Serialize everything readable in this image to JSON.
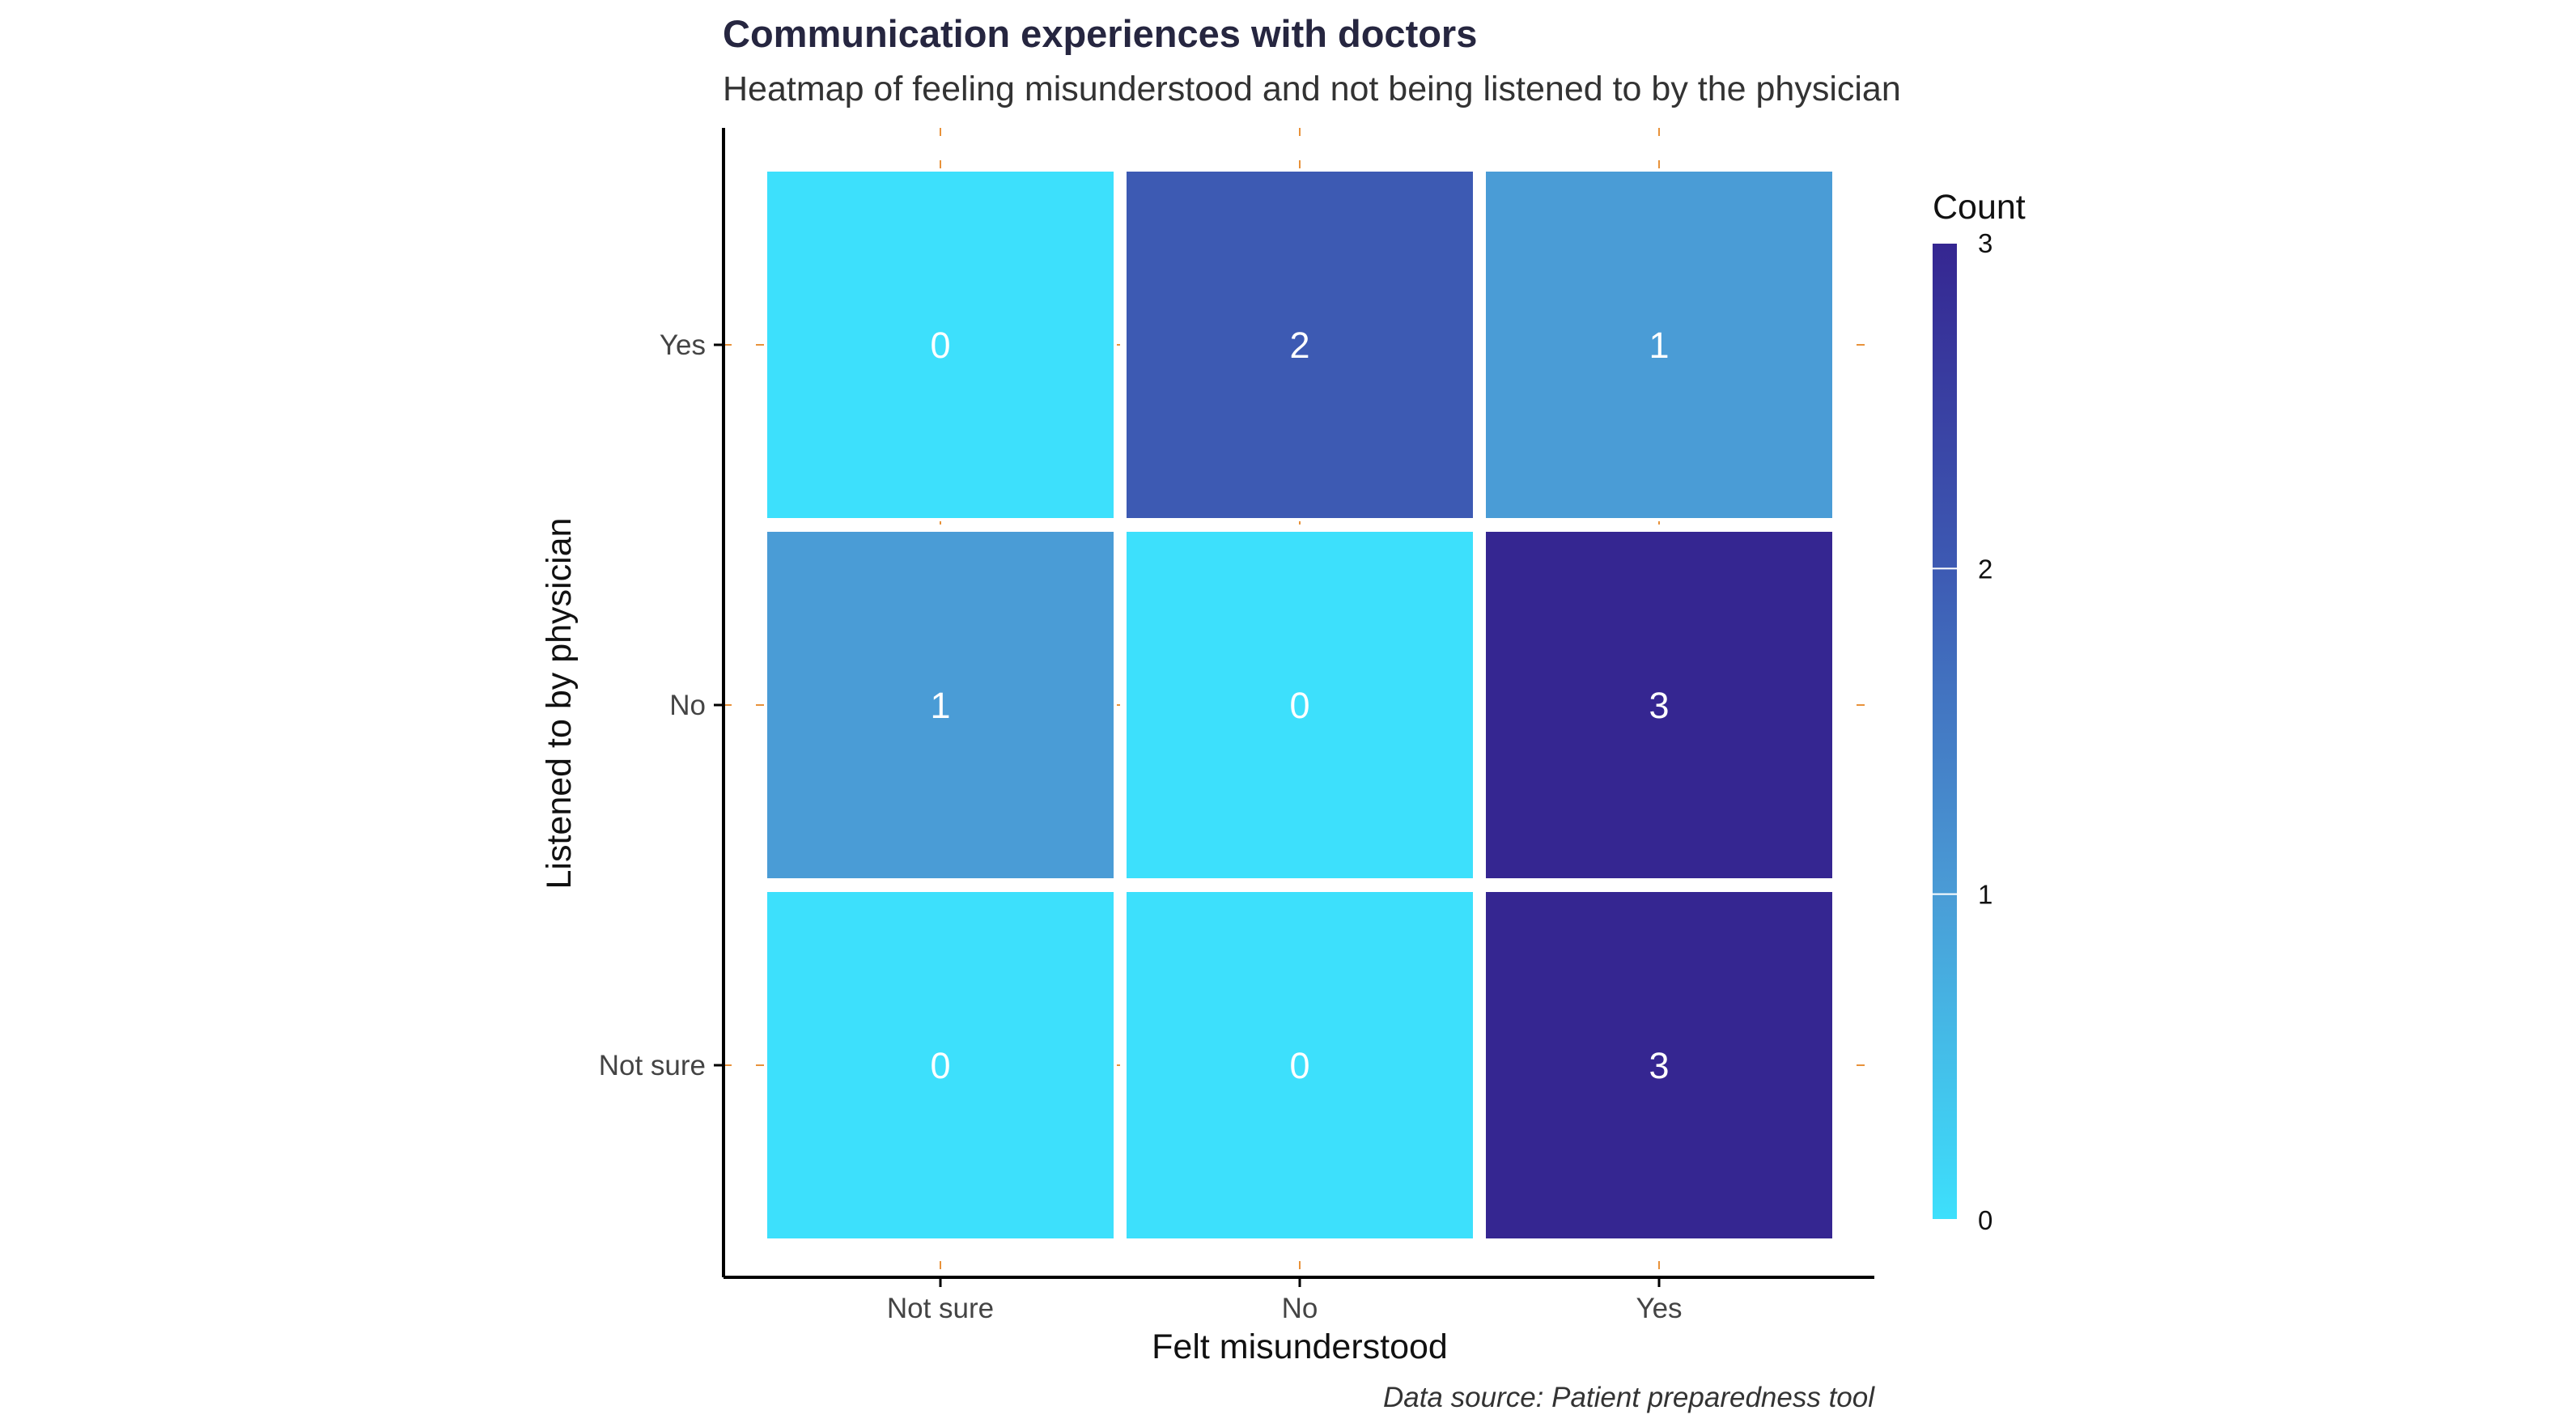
{
  "chart_data": {
    "type": "heatmap",
    "title": "Communication experiences with doctors",
    "subtitle": "Heatmap of feeling misunderstood and not being listened to by the physician",
    "xlabel": "Felt misunderstood",
    "ylabel": "Listened to by physician",
    "x_categories": [
      "Not sure",
      "No",
      "Yes"
    ],
    "y_categories": [
      "Yes",
      "No",
      "Not sure"
    ],
    "values": [
      [
        0,
        2,
        1
      ],
      [
        1,
        0,
        3
      ],
      [
        0,
        0,
        3
      ]
    ],
    "legend": {
      "title": "Count",
      "ticks": [
        "0",
        "1",
        "2",
        "3"
      ],
      "range": [
        0,
        3
      ],
      "placement": "right"
    },
    "caption": "Data source: Patient preparedness tool",
    "colors": {
      "low": "#3de0fc",
      "mid1": "#4a9cd6",
      "mid2": "#3d5ab3",
      "high": "#352691",
      "cell_text": "#ffffff",
      "grid_accent": "#e8923a"
    }
  }
}
